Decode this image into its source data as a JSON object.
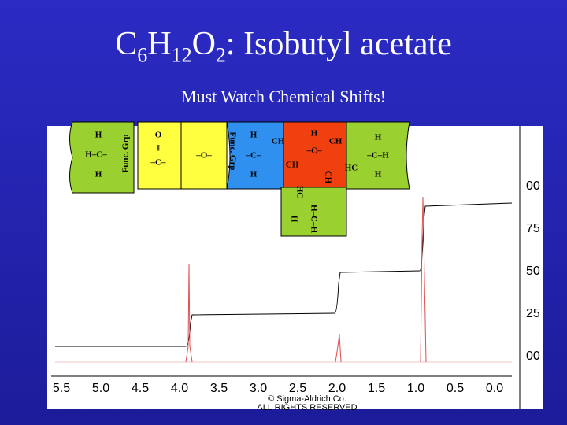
{
  "slide": {
    "title": {
      "formula": [
        "C",
        "6",
        "H",
        "12",
        "O",
        "2"
      ],
      "name": ": Isobutyl acetate"
    },
    "subtitle": "Must Watch  Chemical Shifts!",
    "pieces": [
      {
        "labels": [
          "H",
          "H–C–",
          "H",
          "Func. Grp"
        ]
      },
      {
        "labels": [
          "O",
          "‖",
          "–C–"
        ]
      },
      {
        "labels": [
          "–O–",
          "Func. Grp"
        ]
      },
      {
        "labels": [
          "H",
          "–C–",
          "H",
          "CH"
        ]
      },
      {
        "labels": [
          "H",
          "–C–",
          "CH",
          "CH",
          "CH"
        ]
      },
      {
        "labels": [
          "H",
          "–C–H",
          "H",
          "HC"
        ]
      },
      {
        "labels": [
          "H",
          "H–C–H",
          "HC"
        ]
      }
    ],
    "spectrum": {
      "x_labels": [
        "5.5",
        "5.0",
        "4.5",
        "4.0",
        "3.5",
        "3.0",
        "2.5",
        "2.0",
        "1.5",
        "1.0",
        "0.5",
        "0.0"
      ],
      "right_labels": [
        "00",
        "75",
        "50",
        "25",
        "00"
      ],
      "credit": [
        "© Sigma-Aldrich Co.",
        "ALL RIGHTS RESERVED"
      ]
    }
  }
}
